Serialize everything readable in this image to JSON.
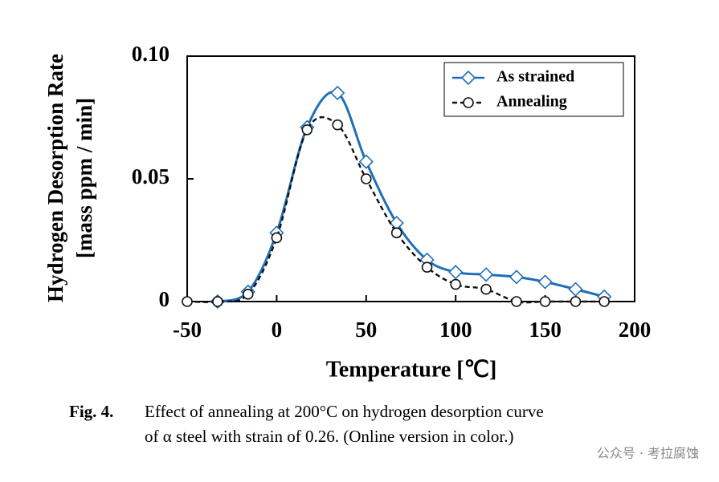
{
  "chart_data": {
    "type": "line",
    "ylabel_lines": [
      "Hydrogen Desorption Rate",
      "[mass ppm / min]"
    ],
    "xlabel": "Temperature [℃]",
    "xlim": [
      -50,
      200
    ],
    "xticks": [
      -50,
      0,
      50,
      100,
      150,
      200
    ],
    "ylim": [
      0,
      0.1
    ],
    "yticks": [
      0,
      0.05,
      {
        "value": 0.1,
        "label": "0.10"
      }
    ],
    "legend": "top-right",
    "series": [
      {
        "name": "As strained",
        "color": "#1f6fb8",
        "line_style": "solid",
        "marker": "diamond",
        "x": [
          -33,
          -16,
          0,
          17,
          34,
          50,
          67,
          84,
          100,
          117,
          134,
          150,
          167,
          183
        ],
        "values": [
          0,
          0.004,
          0.028,
          0.071,
          0.085,
          0.057,
          0.032,
          0.017,
          0.012,
          0.011,
          0.01,
          0.008,
          0.005,
          0.002
        ]
      },
      {
        "name": "Annealing",
        "color": "#111111",
        "line_style": "dashed",
        "marker": "circle",
        "x": [
          -50,
          -33,
          -16,
          0,
          17,
          34,
          50,
          67,
          84,
          100,
          117,
          134,
          150,
          167,
          183
        ],
        "values": [
          0,
          0,
          0.003,
          0.026,
          0.07,
          0.072,
          0.05,
          0.028,
          0.014,
          0.007,
          0.005,
          0,
          0,
          0,
          0
        ]
      }
    ]
  },
  "caption": {
    "label": "Fig. 4.",
    "lines": [
      "Effect of annealing at 200°C on hydrogen desorption curve",
      "of α steel with strain of 0.26. (Online version in color.)"
    ]
  },
  "watermark": "公众号 · 考拉腐蚀"
}
